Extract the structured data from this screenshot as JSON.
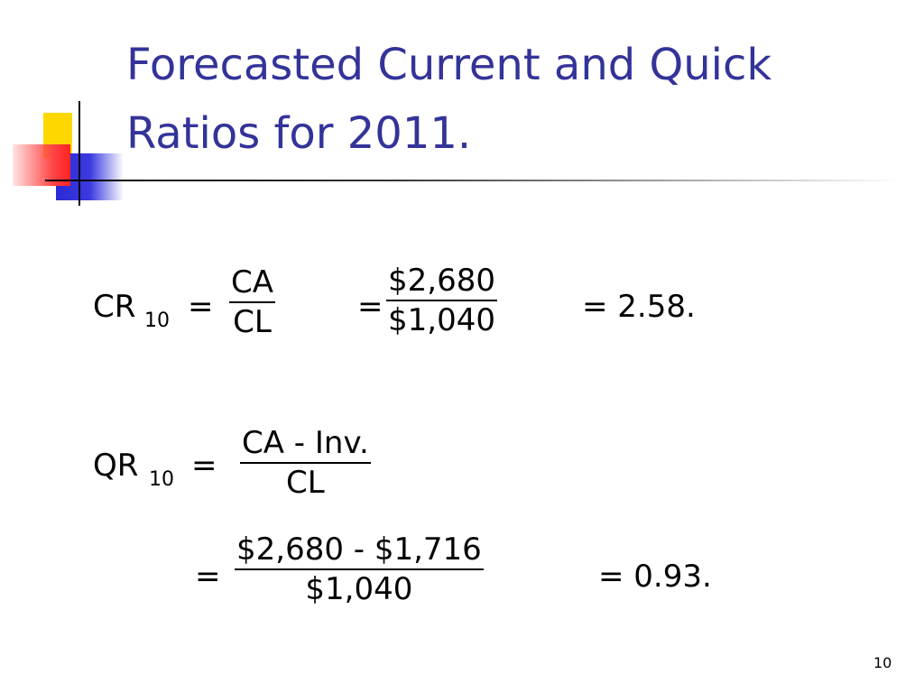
{
  "title": {
    "lines": [
      "Forecasted Current and Quick",
      "Ratios for 2011."
    ]
  },
  "current_ratio": {
    "label": "CR",
    "subscript": "10",
    "equals": "=",
    "formula": {
      "numerator": "CA",
      "denominator": "CL"
    },
    "equals_2": "=",
    "figures": {
      "numerator": "$2,680",
      "denominator": "$1,040"
    },
    "result": "= 2.58."
  },
  "quick_ratio": {
    "label": "QR",
    "subscript": "10",
    "equals": "=",
    "formula": {
      "numerator": "CA - Inv.",
      "denominator": "CL"
    },
    "equals_2": "=",
    "figures": {
      "numerator": "$2,680 - $1,716",
      "denominator": "$1,040"
    },
    "result": "= 0.93."
  },
  "page_number": "10"
}
